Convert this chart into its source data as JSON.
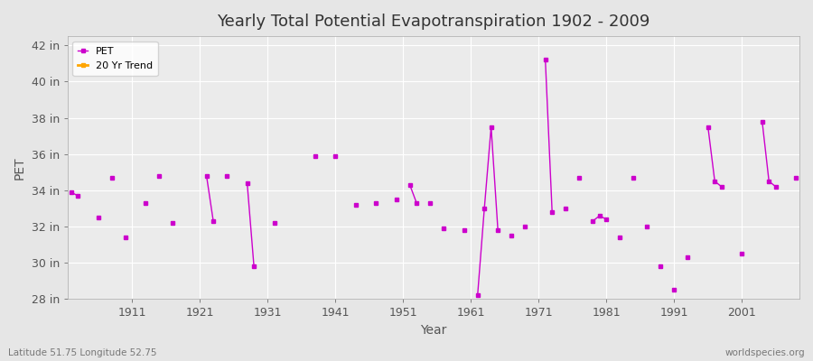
{
  "title": "Yearly Total Potential Evapotranspiration 1902 - 2009",
  "xlabel": "Year",
  "ylabel": "PET",
  "xlim": [
    1901.5,
    2009.5
  ],
  "ylim": [
    28,
    42.5
  ],
  "yticks": [
    28,
    30,
    32,
    34,
    36,
    38,
    40,
    42
  ],
  "ytick_labels": [
    "28 in",
    "30 in",
    "32 in",
    "34 in",
    "36 in",
    "38 in",
    "40 in",
    "42 in"
  ],
  "xticks": [
    1911,
    1921,
    1931,
    1941,
    1951,
    1961,
    1971,
    1981,
    1991,
    2001
  ],
  "pet_color": "#cc00cc",
  "trend_color": "#ffa500",
  "bg_color": "#e6e6e6",
  "plot_bg_color": "#ebebeb",
  "grid_color": "#ffffff",
  "footer_left": "Latitude 51.75 Longitude 52.75",
  "footer_right": "worldspecies.org",
  "pet_data": {
    "1902": 33.9,
    "1903": 33.7,
    "1906": 32.5,
    "1908": 34.7,
    "1910": 31.4,
    "1913": 33.3,
    "1915": 34.8,
    "1917": 32.2,
    "1922": 34.8,
    "1923": 32.3,
    "1925": 34.8,
    "1928": 34.4,
    "1929": 29.8,
    "1932": 32.2,
    "1938": 35.9,
    "1941": 35.9,
    "1944": 33.2,
    "1947": 33.3,
    "1950": 33.5,
    "1952": 34.3,
    "1953": 33.3,
    "1955": 33.3,
    "1957": 31.9,
    "1960": 31.8,
    "1962": 28.2,
    "1963": 33.0,
    "1964": 37.5,
    "1965": 31.8,
    "1967": 31.5,
    "1969": 32.0,
    "1972": 41.2,
    "1973": 32.8,
    "1975": 33.0,
    "1977": 34.7,
    "1979": 32.3,
    "1980": 32.6,
    "1981": 32.4,
    "1983": 31.4,
    "1985": 34.7,
    "1987": 32.0,
    "1989": 29.8,
    "1991": 28.5,
    "1993": 30.3,
    "1996": 37.5,
    "1997": 34.5,
    "1998": 34.2,
    "2001": 30.5,
    "2004": 37.8,
    "2005": 34.5,
    "2006": 34.2,
    "2009": 34.7
  },
  "legend_pet_label": "PET",
  "legend_trend_label": "20 Yr Trend"
}
